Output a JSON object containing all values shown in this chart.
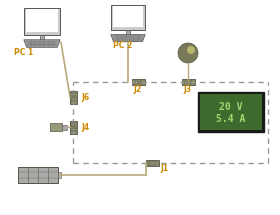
{
  "bg_color": "#ffffff",
  "dashed_line_color": "#999999",
  "connector_color": "#7a7a5a",
  "label_color": "#cc8800",
  "pc1_label": "PC 1",
  "pc2_label": "PC 2",
  "j1_label": "J1",
  "j2_label": "J2",
  "j3_label": "J3",
  "j4_label": "J4",
  "j6_label": "J6",
  "display_line1": "20 V",
  "display_line2": "5.4 A",
  "display_bg": "#3d6b2e",
  "display_fg": "#a0d870",
  "display_border": "#1a1a1a",
  "cable_color": "#b8a87a",
  "monitor_edge": "#555555",
  "monitor_screen": "#dddddd",
  "monitor_body": "#888888",
  "keyboard_color": "#888888"
}
